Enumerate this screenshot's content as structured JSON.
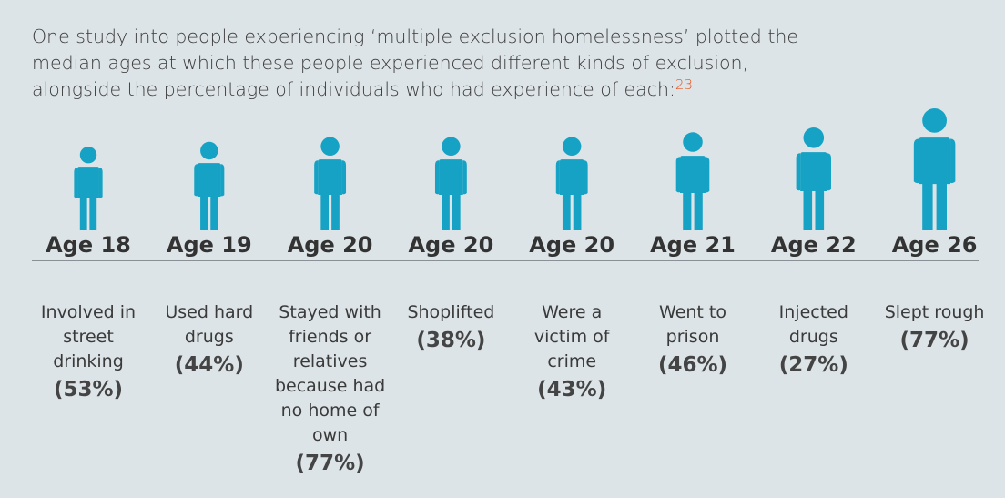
{
  "chart_data": {
    "type": "pictogram",
    "title": "One study into people experiencing ‘multiple exclusion homelessness’ plotted the median ages at which these people experienced different kinds of exclusion, alongside the percentage of individuals who had experience of each:",
    "footnote": "23",
    "categories": [
      "Involved in street drinking",
      "Used hard drugs",
      "Stayed with friends or relatives because had no home of own",
      "Shoplifted",
      "Were a victim of crime",
      "Went to prison",
      "Injected drugs",
      "Slept rough"
    ],
    "values": [
      18,
      19,
      20,
      20,
      20,
      21,
      22,
      26
    ],
    "value_labels": [
      "Age 18",
      "Age 19",
      "Age 20",
      "Age 20",
      "Age 20",
      "Age 21",
      "Age 22",
      "Age 26"
    ],
    "percentages": [
      53,
      44,
      77,
      38,
      43,
      46,
      27,
      77
    ],
    "percentage_labels": [
      "(53%)",
      "(44%)",
      "(77%)",
      "(38%)",
      "(43%)",
      "(46%)",
      "(27%)",
      "(77%)"
    ],
    "color": "#16a2c4"
  }
}
